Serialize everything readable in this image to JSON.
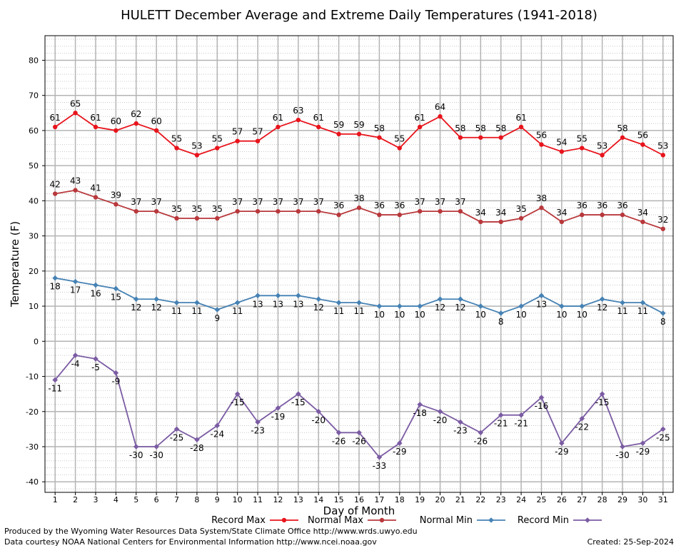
{
  "chart_data": {
    "type": "line",
    "title": "HULETT December Average and Extreme Daily Temperatures (1941-2018)",
    "xlabel": "Day of Month",
    "ylabel": "Temperature (F)",
    "x": [
      1,
      2,
      3,
      4,
      5,
      6,
      7,
      8,
      9,
      10,
      11,
      12,
      13,
      14,
      15,
      16,
      17,
      18,
      19,
      20,
      21,
      22,
      23,
      24,
      25,
      26,
      27,
      28,
      29,
      30,
      31
    ],
    "xlim": [
      0.5,
      31.5
    ],
    "ylim": [
      -43,
      87
    ],
    "yticks": [
      -40,
      -30,
      -20,
      -10,
      0,
      10,
      20,
      30,
      40,
      50,
      60,
      70,
      80
    ],
    "grid": true,
    "legend_position": "bottom",
    "series": [
      {
        "name": "Record Max",
        "color": "#e8141c",
        "marker": "circle",
        "values": [
          61,
          65,
          61,
          60,
          62,
          60,
          55,
          53,
          55,
          57,
          57,
          61,
          63,
          61,
          59,
          59,
          58,
          55,
          61,
          64,
          58,
          58,
          58,
          61,
          56,
          54,
          55,
          53,
          58,
          56,
          53
        ],
        "label_pos": "above"
      },
      {
        "name": "Normal Max",
        "color": "#b8383c",
        "marker": "circle",
        "values": [
          42,
          43,
          41,
          39,
          37,
          37,
          35,
          35,
          35,
          37,
          37,
          37,
          37,
          37,
          36,
          38,
          36,
          36,
          37,
          37,
          37,
          34,
          34,
          35,
          38,
          34,
          36,
          36,
          36,
          34,
          32
        ],
        "label_pos": "above"
      },
      {
        "name": "Normal Min",
        "color": "#4682b4",
        "marker": "diamond",
        "values": [
          18,
          17,
          16,
          15,
          12,
          12,
          11,
          11,
          9,
          11,
          13,
          13,
          13,
          12,
          11,
          11,
          10,
          10,
          10,
          12,
          12,
          10,
          8,
          10,
          13,
          10,
          10,
          12,
          11,
          11,
          8
        ],
        "label_pos": "below"
      },
      {
        "name": "Record Min",
        "color": "#7b5ca3",
        "marker": "diamond",
        "values": [
          -11,
          -4,
          -5,
          -9,
          -30,
          -30,
          -25,
          -28,
          -24,
          -15,
          -23,
          -19,
          -15,
          -20,
          -26,
          -26,
          -33,
          -29,
          -18,
          -20,
          -23,
          -26,
          -21,
          -21,
          -16,
          -29,
          -22,
          -15,
          -30,
          -29,
          -25
        ],
        "label_pos": "below"
      }
    ]
  },
  "footer": {
    "line1": "Produced by the Wyoming Water Resources Data System/State Climate Office http://www.wrds.uwyo.edu",
    "line2": "Data courtesy NOAA National Centers for Environmental Information http://www.ncei.noaa.gov",
    "created": "Created:  25-Sep-2024"
  }
}
